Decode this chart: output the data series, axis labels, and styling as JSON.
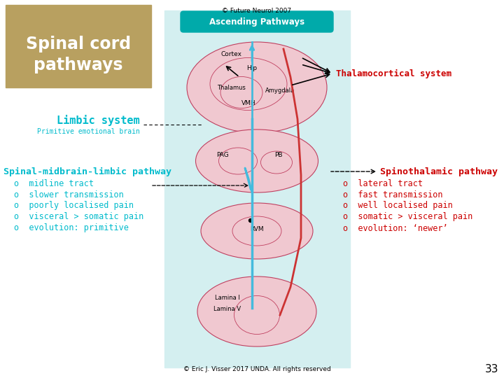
{
  "title_line1": "Spinal cord",
  "title_line2": "pathways",
  "title_bg": "#b8a060",
  "title_color": "#ffffff",
  "copyright_top": "© Future Neurol 2007",
  "thalamocortical_label": "Thalamocortical system",
  "thalamocortical_color": "#cc0000",
  "limbic_label": "Limbic system",
  "limbic_sublabel": "Primitive emotional brain",
  "limbic_color": "#00bbcc",
  "spinal_midbrain_label": "Spinal-midbrain-limbic pathway",
  "spinal_midbrain_color": "#00bbcc",
  "spinothalamic_label": "Spinothalamic pathway",
  "spinothalamic_color": "#cc0000",
  "left_bullets": [
    "o  midline tract",
    "o  slower transmission",
    "o  poorly localised pain",
    "o  visceral > somatic pain",
    "o  evolution: primitive"
  ],
  "left_bullet_color": "#00bbcc",
  "right_bullets": [
    "o  lateral tract",
    "o  fast transmission",
    "o  well localised pain",
    "o  somatic > visceral pain",
    "o  evolution: ‘newer’"
  ],
  "right_bullet_color": "#cc0000",
  "footer": "© Eric J. Visser 2017 UNDA. All rights reserved",
  "page_number": "33",
  "panel_bg": "#d4eff0",
  "brain_fill": "#f0c8d0",
  "brain_edge": "#c04060",
  "ascending_label": "Ascending Pathways",
  "ascending_bg": "#00aaaa",
  "cyan_path": "#44bbdd",
  "red_path": "#cc3333"
}
